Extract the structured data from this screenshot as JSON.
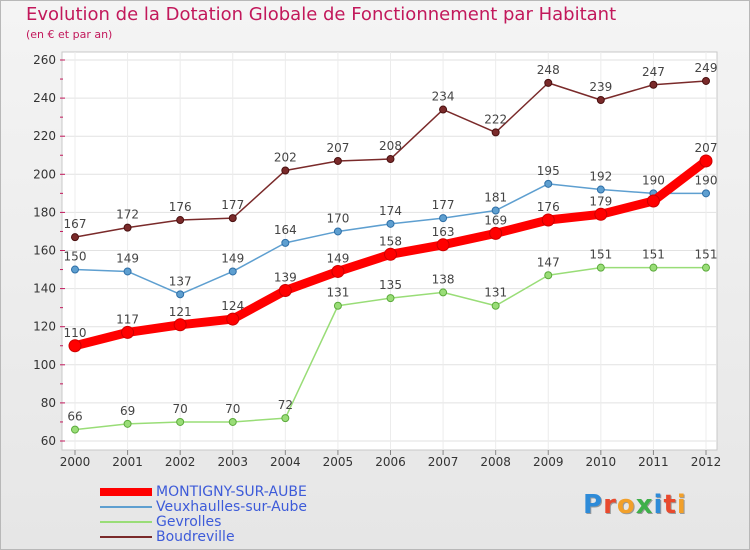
{
  "header": {
    "title": "Evolution de la Dotation Globale de Fonctionnement par Habitant",
    "subtitle": "(en € et par an)"
  },
  "logo": {
    "text": "Proxiti"
  },
  "chart_data": {
    "type": "line",
    "title": "Evolution de la Dotation Globale de Fonctionnement par Habitant",
    "subtitle": "(en € et par an)",
    "x": [
      "2000",
      "2001",
      "2002",
      "2003",
      "2004",
      "2005",
      "2006",
      "2007",
      "2008",
      "2009",
      "2010",
      "2011",
      "2012"
    ],
    "ylim": [
      60,
      260
    ],
    "yticks": [
      60,
      80,
      100,
      120,
      140,
      160,
      180,
      200,
      220,
      240,
      260
    ],
    "grid": true,
    "legend": "bottom-left",
    "series": [
      {
        "name": "MONTIGNY-SUR-AUBE",
        "color": "#ff0000",
        "values": [
          110,
          117,
          121,
          124,
          139,
          149,
          158,
          163,
          169,
          176,
          179,
          186,
          207
        ],
        "labels": [
          "110",
          "117",
          "121",
          "124",
          "139",
          "149",
          "158",
          "163",
          "169",
          "176",
          "179",
          "",
          "207"
        ]
      },
      {
        "name": "Veuxhaulles-sur-Aube",
        "color": "#5e9fd0",
        "values": [
          150,
          149,
          137,
          149,
          164,
          170,
          174,
          177,
          181,
          195,
          192,
          190,
          190
        ],
        "labels": [
          "150",
          "149",
          "137",
          "149",
          "164",
          "170",
          "174",
          "177",
          "181",
          "195",
          "192",
          "190",
          "190"
        ]
      },
      {
        "name": "Gevrolles",
        "color": "#99dd77",
        "values": [
          66,
          69,
          70,
          70,
          72,
          131,
          135,
          138,
          131,
          147,
          151,
          151,
          151
        ],
        "labels": [
          "66",
          "69",
          "70",
          "70",
          "72",
          "131",
          "135",
          "138",
          "131",
          "147",
          "151",
          "151",
          "151"
        ]
      },
      {
        "name": "Boudreville",
        "color": "#7a2a2a",
        "values": [
          167,
          172,
          176,
          177,
          202,
          207,
          208,
          234,
          222,
          248,
          239,
          247,
          249
        ],
        "labels": [
          "167",
          "172",
          "176",
          "177",
          "202",
          "207",
          "208",
          "234",
          "222",
          "248",
          "239",
          "247",
          "249"
        ]
      }
    ]
  }
}
